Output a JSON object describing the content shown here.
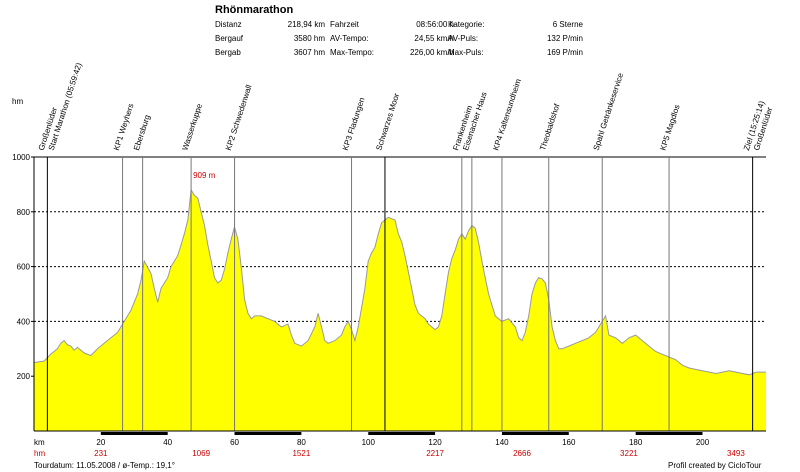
{
  "title": "Rhönmarathon",
  "stats": [
    {
      "label": "Distanz",
      "value": "218,94 km"
    },
    {
      "label": "Bergauf",
      "value": "3580 hm"
    },
    {
      "label": "Bergab",
      "value": "3607 hm"
    },
    {
      "label": "Fahrzeit",
      "value": "08:56:00 h"
    },
    {
      "label": "AV-Tempo:",
      "value": "24,55 km/h"
    },
    {
      "label": "Max-Tempo:",
      "value": "226,00 km/h"
    },
    {
      "label": "Kategorie:",
      "value": "6 Sterne"
    },
    {
      "label": "AV-Puls:",
      "value": "132 P/min"
    },
    {
      "label": "Max-Puls:",
      "value": "169 P/min"
    }
  ],
  "footer": {
    "left": "Tourdatum: 11.05.2008  /  ø-Temp.: 19,1°",
    "right": "Profil created by CicloTour"
  },
  "chart_data": {
    "type": "area",
    "xlabel": "km",
    "ylabel": "hm",
    "xlim": [
      0,
      219
    ],
    "ylim": [
      0,
      1000
    ],
    "grid": true,
    "series_color": "#ffff00",
    "x_ticks": [
      20,
      40,
      60,
      80,
      100,
      120,
      140,
      160,
      180,
      200
    ],
    "y_ticks": [
      200,
      400,
      600,
      800,
      1000
    ],
    "hm_ticks": [
      {
        "km": 20,
        "label": "231"
      },
      {
        "km": 50,
        "label": "1069"
      },
      {
        "km": 80,
        "label": "1521"
      },
      {
        "km": 120,
        "label": "2217"
      },
      {
        "km": 146,
        "label": "2666"
      },
      {
        "km": 178,
        "label": "3221"
      },
      {
        "km": 210,
        "label": "3493"
      }
    ],
    "peak_annotation": {
      "km": 47,
      "alt": 909,
      "label": "909 m"
    },
    "waypoints": [
      {
        "km": 4,
        "name": "Großenlüder"
      },
      {
        "km": 4,
        "name": "Start Marathon (05:59:42)"
      },
      {
        "km": 26.5,
        "name": "KP1 Weyhers"
      },
      {
        "km": 32.5,
        "name": "Ebersburg"
      },
      {
        "km": 47,
        "name": "Wasserkuppe"
      },
      {
        "km": 60,
        "name": "KP2 Schwedenwall"
      },
      {
        "km": 95,
        "name": "KP3 Fladungen"
      },
      {
        "km": 105,
        "name": "Schwarzes Moor"
      },
      {
        "km": 128,
        "name": "Frankenheim"
      },
      {
        "km": 131,
        "name": "Eisenacher Haus"
      },
      {
        "km": 140,
        "name": "KP4 Kaltensundheim"
      },
      {
        "km": 154,
        "name": "Theobaldshof"
      },
      {
        "km": 170,
        "name": "Spahl Getränkeservice"
      },
      {
        "km": 190,
        "name": "KP5 Magdlos"
      },
      {
        "km": 215,
        "name": "Ziel (15:25:14)"
      },
      {
        "km": 215,
        "name": "Großenlüder"
      }
    ],
    "x": [
      0,
      3,
      5,
      7,
      8,
      9,
      10,
      11,
      12,
      13,
      15,
      17,
      19,
      21,
      23,
      25,
      26,
      27,
      29,
      31,
      32,
      33,
      35,
      36,
      37,
      38,
      40,
      41,
      42,
      43,
      44,
      45,
      46,
      47,
      48,
      49,
      50,
      51,
      52,
      53,
      54,
      55,
      56,
      57,
      58,
      59,
      60,
      61,
      62,
      63,
      64,
      65,
      66,
      68,
      70,
      72,
      74,
      76,
      77,
      78,
      80,
      82,
      84,
      85,
      86,
      87,
      88,
      90,
      92,
      93,
      94,
      95,
      96,
      97,
      98,
      99,
      100,
      101,
      102,
      103,
      104,
      105,
      106,
      107,
      108,
      109,
      110,
      111,
      112,
      113,
      114,
      115,
      116,
      117,
      118,
      119,
      120,
      121,
      122,
      123,
      124,
      125,
      126,
      127,
      128,
      129,
      130,
      131,
      132,
      133,
      134,
      135,
      136,
      137,
      138,
      139,
      140,
      142,
      144,
      145,
      146,
      147,
      148,
      149,
      150,
      151,
      152,
      153,
      154,
      155,
      156,
      157,
      158,
      160,
      162,
      164,
      166,
      168,
      169,
      170,
      171,
      172,
      174,
      176,
      177,
      178,
      180,
      182,
      184,
      186,
      188,
      190,
      192,
      194,
      196,
      198,
      200,
      202,
      204,
      206,
      208,
      210,
      212,
      214,
      216,
      219
    ],
    "y": [
      250,
      255,
      280,
      300,
      320,
      330,
      315,
      310,
      295,
      305,
      285,
      275,
      300,
      320,
      340,
      360,
      380,
      400,
      440,
      500,
      550,
      620,
      575,
      520,
      470,
      520,
      560,
      600,
      620,
      640,
      680,
      720,
      770,
      880,
      860,
      850,
      800,
      750,
      680,
      620,
      560,
      540,
      550,
      590,
      650,
      700,
      745,
      700,
      600,
      480,
      430,
      410,
      420,
      420,
      410,
      400,
      380,
      390,
      350,
      320,
      310,
      330,
      380,
      430,
      380,
      330,
      320,
      330,
      350,
      380,
      400,
      370,
      330,
      380,
      450,
      520,
      620,
      650,
      670,
      720,
      760,
      770,
      780,
      775,
      770,
      720,
      690,
      640,
      580,
      520,
      460,
      430,
      420,
      410,
      390,
      380,
      370,
      380,
      420,
      500,
      580,
      630,
      660,
      700,
      720,
      700,
      730,
      750,
      740,
      690,
      620,
      560,
      500,
      460,
      420,
      410,
      400,
      410,
      380,
      340,
      330,
      360,
      420,
      500,
      540,
      560,
      555,
      540,
      480,
      380,
      330,
      300,
      300,
      310,
      320,
      330,
      340,
      360,
      380,
      400,
      420,
      350,
      340,
      320,
      330,
      340,
      350,
      330,
      310,
      290,
      280,
      270,
      260,
      240,
      230,
      225,
      220,
      215,
      210,
      215,
      220,
      215,
      210,
      205,
      215,
      215
    ]
  }
}
